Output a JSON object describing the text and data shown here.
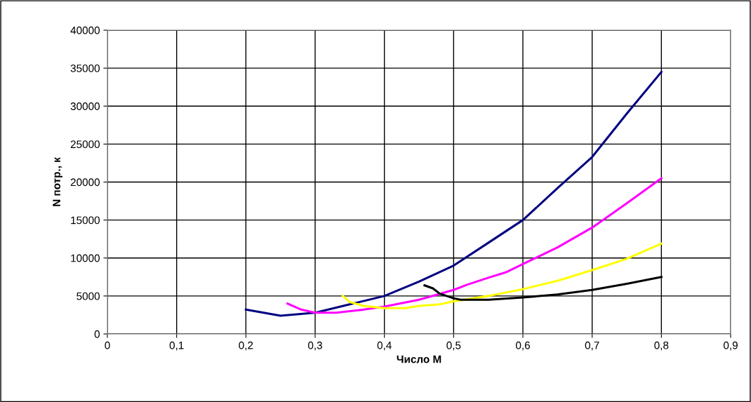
{
  "chart_data": {
    "type": "line",
    "xlabel": "Число М",
    "ylabel": "N потр., к",
    "xlim": [
      0,
      0.9
    ],
    "ylim": [
      0,
      40000
    ],
    "xticks": [
      {
        "value": 0,
        "label": "0"
      },
      {
        "value": 0.1,
        "label": "0,1"
      },
      {
        "value": 0.2,
        "label": "0,2"
      },
      {
        "value": 0.3,
        "label": "0,3"
      },
      {
        "value": 0.4,
        "label": "0,4"
      },
      {
        "value": 0.5,
        "label": "0,5"
      },
      {
        "value": 0.6,
        "label": "0,6"
      },
      {
        "value": 0.7,
        "label": "0,7"
      },
      {
        "value": 0.8,
        "label": "0,8"
      },
      {
        "value": 0.9,
        "label": "0,9"
      }
    ],
    "yticks": [
      0,
      5000,
      10000,
      15000,
      20000,
      25000,
      30000,
      35000,
      40000
    ],
    "grid": true,
    "legend": false,
    "marker": "none",
    "line_style": "solid",
    "series": [
      {
        "color": "#000080",
        "x": [
          0.2,
          0.25,
          0.3,
          0.35,
          0.4,
          0.45,
          0.5,
          0.55,
          0.6,
          0.65,
          0.7,
          0.75,
          0.8
        ],
        "values": [
          3200,
          2400,
          2800,
          3900,
          5000,
          6900,
          9000,
          12000,
          15000,
          19200,
          23300,
          29000,
          34500
        ]
      },
      {
        "color": "#ff00ff",
        "x": [
          0.26,
          0.28,
          0.3,
          0.33,
          0.37,
          0.4,
          0.45,
          0.5,
          0.52,
          0.55,
          0.575,
          0.6,
          0.65,
          0.7,
          0.75,
          0.8
        ],
        "values": [
          4000,
          3200,
          2800,
          2800,
          3200,
          3600,
          4500,
          5800,
          6500,
          7400,
          8100,
          9200,
          11400,
          14000,
          17200,
          20500
        ]
      },
      {
        "color": "#ffff00",
        "x": [
          0.34,
          0.35,
          0.37,
          0.4,
          0.43,
          0.45,
          0.48,
          0.5,
          0.55,
          0.6,
          0.65,
          0.7,
          0.75,
          0.8
        ],
        "values": [
          5000,
          4200,
          3700,
          3400,
          3400,
          3700,
          3900,
          4300,
          5000,
          5900,
          7000,
          8400,
          9900,
          11900
        ]
      },
      {
        "color": "#000000",
        "x": [
          0.458,
          0.47,
          0.48,
          0.5,
          0.51,
          0.55,
          0.6,
          0.65,
          0.7,
          0.75,
          0.8
        ],
        "values": [
          6400,
          6000,
          5300,
          4700,
          4500,
          4500,
          4800,
          5200,
          5800,
          6600,
          7500
        ]
      }
    ]
  }
}
